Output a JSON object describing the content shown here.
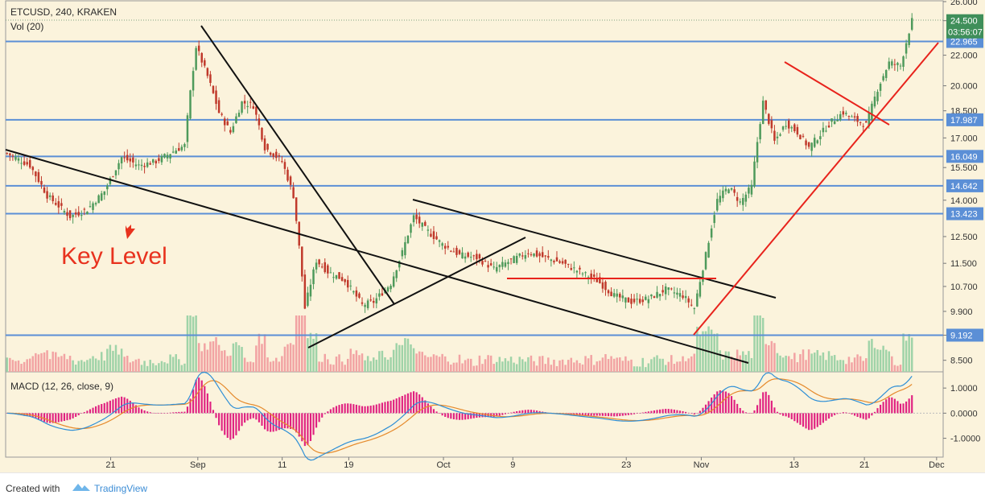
{
  "header": {
    "symbol_line": "ETCUSD, 240, KRAKEN",
    "volume_label": "Vol (20)",
    "macd_label": "MACD (12, 26, close, 9)"
  },
  "footer": {
    "created_with": "Created with",
    "brand": "TradingView"
  },
  "colors": {
    "background": "#fbf3dc",
    "up_candle": "#4e9a5b",
    "down_candle": "#c0392b",
    "level_line": "#5b8fd6",
    "trend_black": "#111111",
    "trend_red": "#e8231c",
    "annotation": "#e8321e",
    "macd_line": "#2e8fd6",
    "signal_line": "#e58a2c",
    "histogram": "#e02080",
    "last_price_badge": "#3f8f5a"
  },
  "chart_data": {
    "type": "candlestick",
    "symbol": "ETCUSD",
    "interval": "240",
    "exchange": "KRAKEN",
    "price_axis": {
      "ticks": [
        "26.000",
        "24.500",
        "22.000",
        "20.000",
        "18.500",
        "17.000",
        "15.500",
        "14.000",
        "12.500",
        "11.500",
        "10.700",
        "9.900",
        "9.192",
        "8.500"
      ],
      "ylim": [
        8.2,
        26.0
      ],
      "scale": "log"
    },
    "x_ticks": [
      "21",
      "Sep",
      "11",
      "19",
      "Oct",
      "9",
      "23",
      "Nov",
      "13",
      "21",
      "Dec"
    ],
    "horizontal_levels": [
      22.965,
      17.987,
      16.049,
      14.642,
      13.423,
      9.192
    ],
    "last_price": 24.5,
    "countdown": "03:56:07",
    "close_path": [
      {
        "bar": 0,
        "price": 16.2
      },
      {
        "bar": 8,
        "price": 15.6
      },
      {
        "bar": 14,
        "price": 14.2
      },
      {
        "bar": 22,
        "price": 13.3
      },
      {
        "bar": 28,
        "price": 13.6
      },
      {
        "bar": 34,
        "price": 14.4
      },
      {
        "bar": 40,
        "price": 16.0
      },
      {
        "bar": 46,
        "price": 15.6
      },
      {
        "bar": 52,
        "price": 15.8
      },
      {
        "bar": 58,
        "price": 16.3
      },
      {
        "bar": 62,
        "price": 16.6
      },
      {
        "bar": 66,
        "price": 22.6
      },
      {
        "bar": 70,
        "price": 20.6
      },
      {
        "bar": 74,
        "price": 18.4
      },
      {
        "bar": 78,
        "price": 17.3
      },
      {
        "bar": 82,
        "price": 19.0
      },
      {
        "bar": 86,
        "price": 18.8
      },
      {
        "bar": 90,
        "price": 16.5
      },
      {
        "bar": 96,
        "price": 15.8
      },
      {
        "bar": 100,
        "price": 14.2
      },
      {
        "bar": 104,
        "price": 10.0
      },
      {
        "bar": 108,
        "price": 11.6
      },
      {
        "bar": 112,
        "price": 11.2
      },
      {
        "bar": 118,
        "price": 10.9
      },
      {
        "bar": 124,
        "price": 10.1
      },
      {
        "bar": 128,
        "price": 10.2
      },
      {
        "bar": 134,
        "price": 10.8
      },
      {
        "bar": 138,
        "price": 11.9
      },
      {
        "bar": 142,
        "price": 13.3
      },
      {
        "bar": 146,
        "price": 12.8
      },
      {
        "bar": 152,
        "price": 12.2
      },
      {
        "bar": 158,
        "price": 11.8
      },
      {
        "bar": 164,
        "price": 11.7
      },
      {
        "bar": 170,
        "price": 11.3
      },
      {
        "bar": 176,
        "price": 11.6
      },
      {
        "bar": 182,
        "price": 11.9
      },
      {
        "bar": 188,
        "price": 11.7
      },
      {
        "bar": 194,
        "price": 11.5
      },
      {
        "bar": 200,
        "price": 11.2
      },
      {
        "bar": 206,
        "price": 10.9
      },
      {
        "bar": 212,
        "price": 10.4
      },
      {
        "bar": 218,
        "price": 10.2
      },
      {
        "bar": 224,
        "price": 10.3
      },
      {
        "bar": 230,
        "price": 10.6
      },
      {
        "bar": 236,
        "price": 10.4
      },
      {
        "bar": 240,
        "price": 10.0
      },
      {
        "bar": 244,
        "price": 11.8
      },
      {
        "bar": 248,
        "price": 14.0
      },
      {
        "bar": 252,
        "price": 14.6
      },
      {
        "bar": 256,
        "price": 13.9
      },
      {
        "bar": 260,
        "price": 14.6
      },
      {
        "bar": 264,
        "price": 19.0
      },
      {
        "bar": 268,
        "price": 16.8
      },
      {
        "bar": 272,
        "price": 17.8
      },
      {
        "bar": 276,
        "price": 17.3
      },
      {
        "bar": 280,
        "price": 16.5
      },
      {
        "bar": 284,
        "price": 17.2
      },
      {
        "bar": 288,
        "price": 17.9
      },
      {
        "bar": 292,
        "price": 18.4
      },
      {
        "bar": 296,
        "price": 18.0
      },
      {
        "bar": 300,
        "price": 17.7
      },
      {
        "bar": 304,
        "price": 19.8
      },
      {
        "bar": 308,
        "price": 21.5
      },
      {
        "bar": 312,
        "price": 21.3
      },
      {
        "bar": 316,
        "price": 24.5
      }
    ],
    "volume": {
      "label": "Vol (20)"
    },
    "macd": {
      "label": "MACD (12, 26, close, 9)",
      "ticks": [
        "1.0000",
        "0.0000",
        "-1.0000"
      ],
      "ylim": [
        -1.75,
        1.55
      ]
    }
  },
  "annotations": {
    "key_level": "Key Level"
  }
}
